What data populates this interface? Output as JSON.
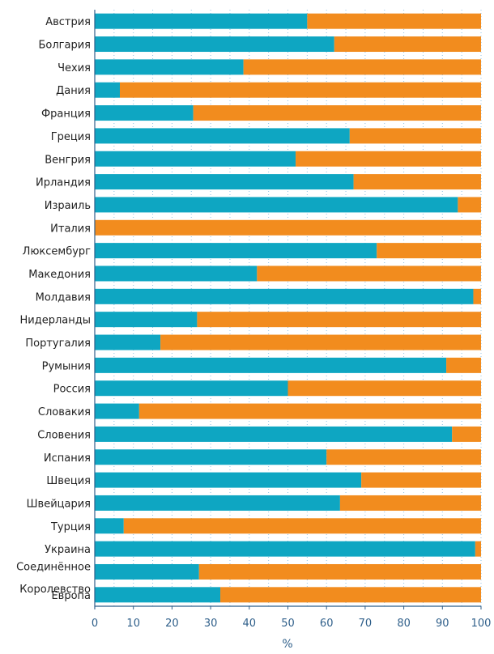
{
  "chart_data": {
    "type": "bar",
    "stacked": true,
    "orientation": "horizontal",
    "categories": [
      "Австрия",
      "Болгария",
      "Чехия",
      "Дания",
      "Франция",
      "Греция",
      "Венгрия",
      "Ирландия",
      "Израиль",
      "Италия",
      "Люксембург",
      "Македония",
      "Молдавия",
      "Нидерланды",
      "Португалия",
      "Румыния",
      "Россия",
      "Словакия",
      "Словения",
      "Испания",
      "Швеция",
      "Швейцария",
      "Турция",
      "Украина",
      "Соединённое Королевство",
      "Европа"
    ],
    "category_lines": [
      [
        "Австрия"
      ],
      [
        "Болгария"
      ],
      [
        "Чехия"
      ],
      [
        "Дания"
      ],
      [
        "Франция"
      ],
      [
        "Греция"
      ],
      [
        "Венгрия"
      ],
      [
        "Ирландия"
      ],
      [
        "Израиль"
      ],
      [
        "Италия"
      ],
      [
        "Люксембург"
      ],
      [
        "Македония"
      ],
      [
        "Молдавия"
      ],
      [
        "Нидерланды"
      ],
      [
        "Португалия"
      ],
      [
        "Румыния"
      ],
      [
        "Россия"
      ],
      [
        "Словакия"
      ],
      [
        "Словения"
      ],
      [
        "Испания"
      ],
      [
        "Швеция"
      ],
      [
        "Швейцария"
      ],
      [
        "Турция"
      ],
      [
        "Украина"
      ],
      [
        "Соединённое",
        "Королевство"
      ],
      [
        "Европа"
      ]
    ],
    "series": [
      {
        "values": [
          55,
          62,
          38.5,
          6.5,
          25.5,
          66,
          52,
          67,
          94,
          0,
          73,
          42,
          98,
          26.5,
          17,
          91,
          50,
          11.5,
          92.5,
          60,
          69,
          63.5,
          7.5,
          98.5,
          27,
          32.5
        ],
        "color": "#0ea6c2"
      },
      {
        "values": [
          45,
          38,
          61.5,
          93.5,
          74.5,
          34,
          48,
          33,
          6,
          100,
          27,
          58,
          2,
          73.5,
          83,
          9,
          50,
          88.5,
          7.5,
          40,
          31,
          36.5,
          92.5,
          1.5,
          73,
          67.5
        ],
        "color": "#f28c1e"
      }
    ],
    "x_ticks": [
      "0",
      "10",
      "20",
      "30",
      "40",
      "50",
      "60",
      "70",
      "80",
      "90",
      "100"
    ],
    "xlim": [
      0,
      100
    ],
    "xlabel": "%",
    "grid": "vertical dotted",
    "colors": {
      "axis": "#2f5f8a",
      "grid": "#8fc1e3",
      "text": "#222222"
    }
  }
}
